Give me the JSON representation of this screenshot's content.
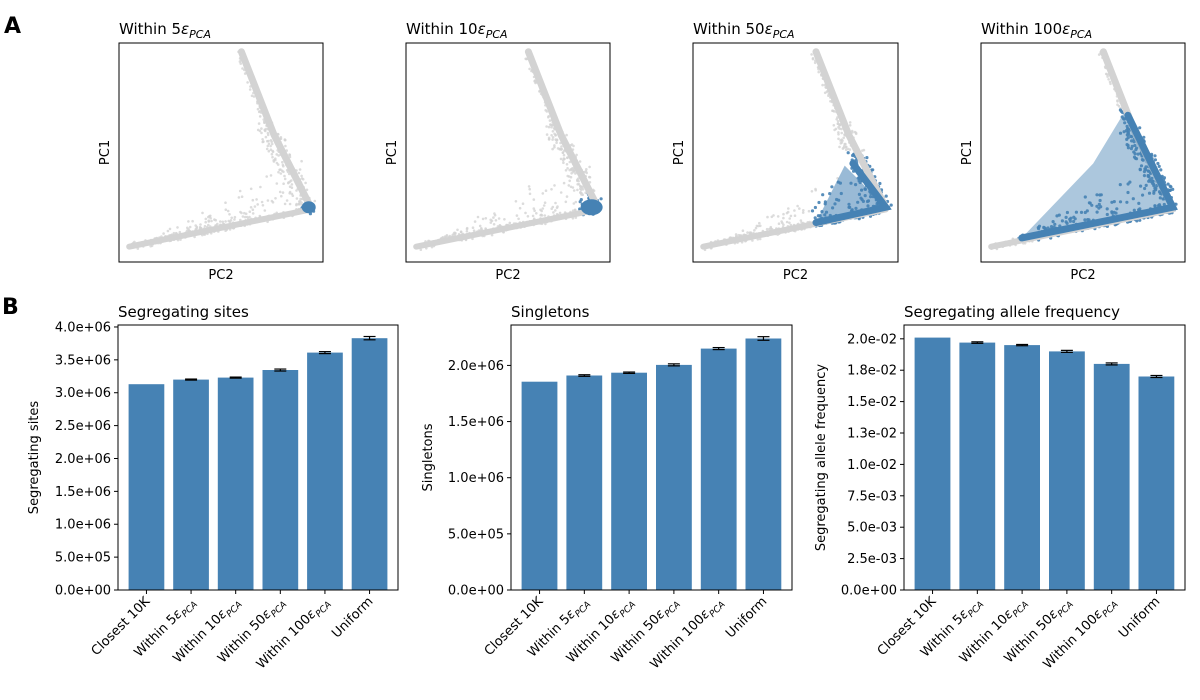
{
  "panel_labels": [
    "A",
    "B"
  ],
  "scatter_panels": [
    {
      "title_main": "Within 5",
      "title_eps": "ε",
      "title_sub": "PCA",
      "xlabel": "PC2",
      "ylabel": "PC1"
    },
    {
      "title_main": "Within 10",
      "title_eps": "ε",
      "title_sub": "PCA",
      "xlabel": "PC2",
      "ylabel": "PC1"
    },
    {
      "title_main": "Within 50",
      "title_eps": "ε",
      "title_sub": "PCA",
      "xlabel": "PC2",
      "ylabel": "PC1"
    },
    {
      "title_main": "Within 100",
      "title_eps": "ε",
      "title_sub": "PCA",
      "xlabel": "PC2",
      "ylabel": "PC1"
    }
  ],
  "colors": {
    "bar": "#4682b4",
    "highlight": "#4682b4",
    "background_points": "#d3d3d3",
    "errorbar": "#000000"
  },
  "chart_data": [
    {
      "type": "bar",
      "title": "Segregating sites",
      "xlabel": "",
      "ylabel": "Segregating sites",
      "categories": [
        {
          "main": "Closest 10K",
          "eps": "",
          "sub": ""
        },
        {
          "main": "Within 5",
          "eps": "ε",
          "sub": "PCA"
        },
        {
          "main": "Within 10",
          "eps": "ε",
          "sub": "PCA"
        },
        {
          "main": "Within 50",
          "eps": "ε",
          "sub": "PCA"
        },
        {
          "main": "Within 100",
          "eps": "ε",
          "sub": "PCA"
        },
        {
          "main": "Uniform",
          "eps": "",
          "sub": ""
        }
      ],
      "values": [
        3130000,
        3200000,
        3230000,
        3345000,
        3610000,
        3830000
      ],
      "errors": [
        0,
        8000,
        8000,
        15000,
        15000,
        25000
      ],
      "ylim": [
        0,
        4030000
      ],
      "yticks": [
        0,
        500000,
        1000000,
        1500000,
        2000000,
        2500000,
        3000000,
        3500000,
        4000000
      ],
      "yticklabels": [
        "0.0e+00",
        "5.0e+05",
        "1.0e+06",
        "1.5e+06",
        "2.0e+06",
        "2.5e+06",
        "3.0e+06",
        "3.5e+06",
        "4.0e+06"
      ]
    },
    {
      "type": "bar",
      "title": "Singletons",
      "xlabel": "",
      "ylabel": "Singletons",
      "categories": [
        {
          "main": "Closest 10K",
          "eps": "",
          "sub": ""
        },
        {
          "main": "Within 5",
          "eps": "ε",
          "sub": "PCA"
        },
        {
          "main": "Within 10",
          "eps": "ε",
          "sub": "PCA"
        },
        {
          "main": "Within 50",
          "eps": "ε",
          "sub": "PCA"
        },
        {
          "main": "Within 100",
          "eps": "ε",
          "sub": "PCA"
        },
        {
          "main": "Uniform",
          "eps": "",
          "sub": ""
        }
      ],
      "values": [
        1855000,
        1910000,
        1935000,
        2005000,
        2150000,
        2240000
      ],
      "errors": [
        0,
        7000,
        6000,
        9000,
        9000,
        16000
      ],
      "ylim": [
        0,
        2360000
      ],
      "yticks": [
        0,
        500000,
        1000000,
        1500000,
        2000000
      ],
      "yticklabels": [
        "0.0e+00",
        "5.0e+05",
        "1.0e+06",
        "1.5e+06",
        "2.0e+06"
      ]
    },
    {
      "type": "bar",
      "title": "Segregating allele frequency",
      "xlabel": "",
      "ylabel": "Segregating allele frequency",
      "categories": [
        {
          "main": "Closest 10K",
          "eps": "",
          "sub": ""
        },
        {
          "main": "Within 5",
          "eps": "ε",
          "sub": "PCA"
        },
        {
          "main": "Within 10",
          "eps": "ε",
          "sub": "PCA"
        },
        {
          "main": "Within 50",
          "eps": "ε",
          "sub": "PCA"
        },
        {
          "main": "Within 100",
          "eps": "ε",
          "sub": "PCA"
        },
        {
          "main": "Uniform",
          "eps": "",
          "sub": ""
        }
      ],
      "values": [
        0.0201,
        0.0197,
        0.0195,
        0.019,
        0.018,
        0.017
      ],
      "errors": [
        0,
        6e-05,
        5e-05,
        8e-05,
        8e-05,
        8e-05
      ],
      "ylim": [
        0,
        0.0211
      ],
      "yticks": [
        0,
        0.0025,
        0.005,
        0.0075,
        0.01,
        0.0125,
        0.015,
        0.0175,
        0.02
      ],
      "yticklabels": [
        "0.0e+00",
        "2.5e-03",
        "5.0e-03",
        "7.5e-03",
        "1.0e-02",
        "1.3e-02",
        "1.5e-02",
        "1.8e-02",
        "2.0e-02"
      ]
    }
  ]
}
